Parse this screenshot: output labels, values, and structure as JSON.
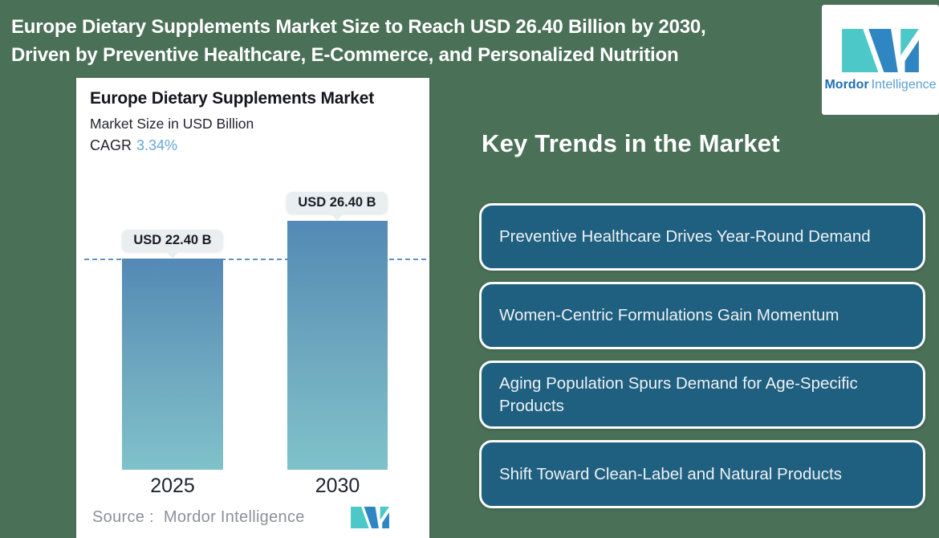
{
  "header": {
    "title_line1": "Europe Dietary Supplements Market Size to Reach USD 26.40 Billion by 2030,",
    "title_line2": "Driven by Preventive Healthcare, E-Commerce, and Personalized Nutrition"
  },
  "logo": {
    "brand_bold": "Mordor",
    "brand_light": "Intelligence"
  },
  "chart": {
    "title": "Europe Dietary Supplements Market",
    "subtitle": "Market Size in USD Billion",
    "cagr_label": "CAGR",
    "cagr_value": "3.34%",
    "bars": [
      {
        "year": "2025",
        "label": "USD 22.40 B",
        "value": 22.4
      },
      {
        "year": "2030",
        "label": "USD 26.40 B",
        "value": 26.4
      }
    ],
    "source_prefix": "Source :",
    "source_value": "Mordor Intelligence"
  },
  "trends": {
    "heading": "Key Trends in the Market",
    "items": [
      {
        "label": "Preventive Healthcare Drives Year-Round Demand"
      },
      {
        "label": "Women-Centric Formulations Gain Momentum"
      },
      {
        "label": "Aging Population Spurs Demand for Age-Specific Products"
      },
      {
        "label": "Shift Toward Clean-Label and Natural Products"
      }
    ]
  },
  "chart_data": {
    "type": "bar",
    "categories": [
      "2025",
      "2030"
    ],
    "values": [
      22.4,
      26.4
    ],
    "title": "Europe Dietary Supplements Market",
    "subtitle": "Market Size in USD Billion",
    "cagr": "3.34%",
    "unit": "USD Billion",
    "bar_labels": [
      "USD 22.40 B",
      "USD 26.40 B"
    ],
    "reference_line": 22.4,
    "ylim": [
      0,
      30
    ],
    "grid": false,
    "legend": false,
    "source": "Source : Mordor Intelligence"
  },
  "colors": {
    "background_green": "#4A7057",
    "trend_box_fill": "#1F5F7F",
    "bar_gradient_top": "#5389B5",
    "bar_gradient_bottom": "#7FC2CA",
    "dashed_reference": "#5C93C4",
    "bubble_background": "#E9EEF1",
    "cagr_accent": "#66A7D8",
    "logo_teal": "#4CC8C8",
    "logo_blue": "#2F86C3",
    "source_gray": "#8B9199"
  }
}
